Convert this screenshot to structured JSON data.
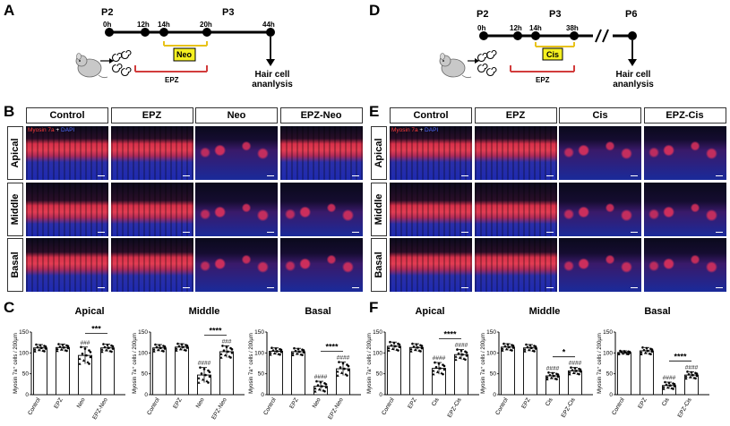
{
  "panels": {
    "A": "A",
    "B": "B",
    "C": "C",
    "D": "D",
    "E": "E",
    "F": "F"
  },
  "timeline_left": {
    "p_top_left": "P2",
    "p_top_right": "P3",
    "hours": [
      "0h",
      "12h",
      "14h",
      "20h",
      "44h"
    ],
    "drug": "Neo",
    "epz": "EPZ",
    "end_label": [
      "Hair cell",
      "ananlysis"
    ]
  },
  "timeline_right": {
    "p_top_left": "P2",
    "p_top_mid": "P3",
    "p_top_right": "P6",
    "hours": [
      "0h",
      "12h",
      "14h",
      "38h"
    ],
    "drug": "Cis",
    "epz": "EPZ",
    "end_label": [
      "Hair cell",
      "ananlysis"
    ]
  },
  "grid_left": {
    "cols": [
      "Control",
      "EPZ",
      "Neo",
      "EPZ-Neo"
    ],
    "rows": [
      "Apical",
      "Middle",
      "Basal"
    ]
  },
  "grid_right": {
    "cols": [
      "Control",
      "EPZ",
      "Cis",
      "EPZ-Cis"
    ],
    "rows": [
      "Apical",
      "Middle",
      "Basal"
    ]
  },
  "stain_label": {
    "myosin": "Myosin 7a",
    "plus": " + ",
    "dapi": "DAPI"
  },
  "colors": {
    "bar_fill": "#ffffff",
    "marker": "#000000",
    "drug_box": "#f5f020",
    "epz_line": "#d23c3c",
    "neo_line": "#e8c21a"
  },
  "chart_data": [
    {
      "type": "bar",
      "title": "Apical",
      "ylabel": "Myosin 7a⁺ cells / 200µm",
      "categories": [
        "Control",
        "EPZ",
        "Neo",
        "EPZ-Neo"
      ],
      "values": [
        112,
        113,
        94,
        112
      ],
      "errors": [
        8,
        8,
        20,
        9
      ],
      "ylim": [
        0,
        150
      ],
      "yticks": [
        "0",
        "50",
        "100",
        "150"
      ],
      "annotations": [
        "",
        "",
        "###",
        ""
      ],
      "sig": "***",
      "sig_between": [
        2,
        3
      ]
    },
    {
      "type": "bar",
      "title": "Middle",
      "ylabel": "Myosin 7a⁺ cells / 200µm",
      "categories": [
        "Control",
        "EPZ",
        "Neo",
        "EPZ-Neo"
      ],
      "values": [
        112,
        114,
        47,
        103
      ],
      "errors": [
        8,
        8,
        18,
        14
      ],
      "ylim": [
        0,
        150
      ],
      "yticks": [
        "0",
        "50",
        "100",
        "150"
      ],
      "annotations": [
        "",
        "",
        "####",
        "###"
      ],
      "sig": "****",
      "sig_between": [
        2,
        3
      ]
    },
    {
      "type": "bar",
      "title": "Basal",
      "ylabel": "Myosin 7a⁺ cells / 200µm",
      "categories": [
        "Control",
        "EPZ",
        "Neo",
        "EPZ-Neo"
      ],
      "values": [
        104,
        103,
        20,
        62
      ],
      "errors": [
        8,
        8,
        12,
        16
      ],
      "ylim": [
        0,
        150
      ],
      "yticks": [
        "0",
        "50",
        "100",
        "150"
      ],
      "annotations": [
        "",
        "",
        "####",
        "####"
      ],
      "sig": "****",
      "sig_between": [
        2,
        3
      ]
    },
    {
      "type": "bar",
      "title": "Apical",
      "ylabel": "Myosin 7a⁺ cells / 200µm",
      "categories": [
        "Control",
        "EPZ",
        "Cis",
        "EPZ-Cis"
      ],
      "values": [
        116,
        113,
        63,
        96
      ],
      "errors": [
        10,
        9,
        14,
        12
      ],
      "ylim": [
        0,
        150
      ],
      "yticks": [
        "0",
        "50",
        "100",
        "150"
      ],
      "annotations": [
        "",
        "",
        "####",
        "####"
      ],
      "sig": "****",
      "sig_between": [
        2,
        3
      ]
    },
    {
      "type": "bar",
      "title": "Middle",
      "ylabel": "Myosin 7a⁺ cells / 200µm",
      "categories": [
        "Control",
        "EPZ",
        "Cis",
        "EPZ-Cis"
      ],
      "values": [
        114,
        112,
        45,
        57
      ],
      "errors": [
        8,
        8,
        8,
        8
      ],
      "ylim": [
        0,
        150
      ],
      "yticks": [
        "0",
        "50",
        "100",
        "150"
      ],
      "annotations": [
        "",
        "",
        "####",
        "####"
      ],
      "sig": "*",
      "sig_between": [
        2,
        3
      ]
    },
    {
      "type": "bar",
      "title": "Basal",
      "ylabel": "Myosin 7a⁺ cells / 200µm",
      "categories": [
        "Control",
        "EPZ",
        "Cis",
        "EPZ-Cis"
      ],
      "values": [
        101,
        105,
        22,
        47
      ],
      "errors": [
        4,
        8,
        8,
        8
      ],
      "ylim": [
        0,
        150
      ],
      "yticks": [
        "0",
        "50",
        "100",
        "150"
      ],
      "annotations": [
        "",
        "",
        "####",
        "####"
      ],
      "sig": "****",
      "sig_between": [
        2,
        3
      ]
    }
  ]
}
